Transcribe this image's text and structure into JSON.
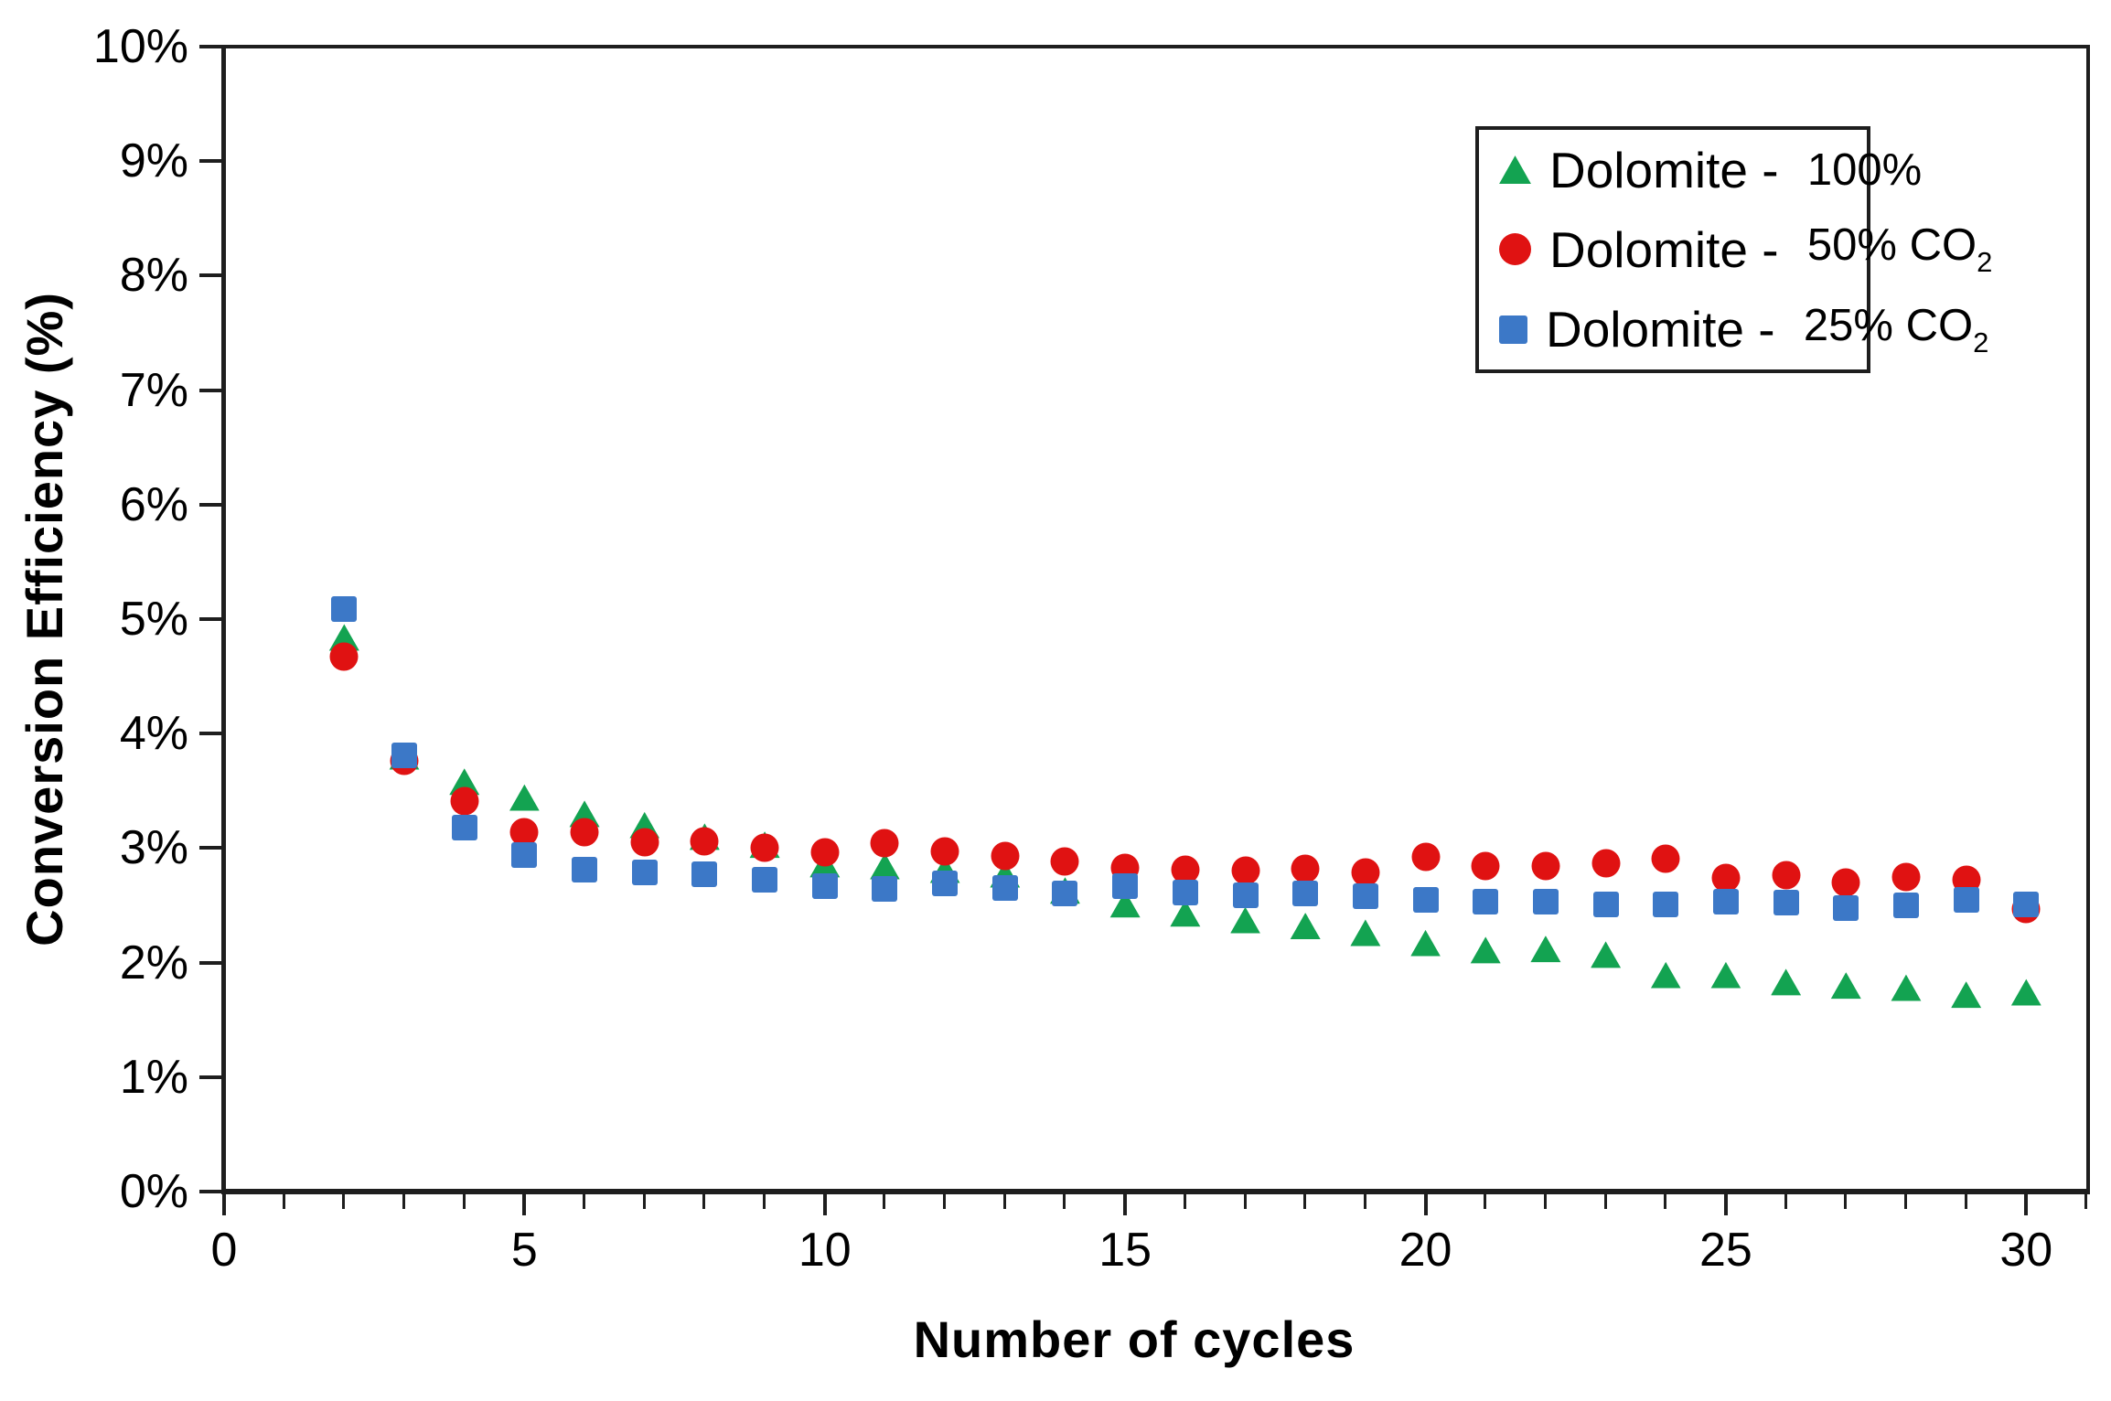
{
  "chart_data": {
    "type": "scatter",
    "title": "",
    "xlabel": "Number of cycles",
    "ylabel": "Conversion Efficiency (%)",
    "xlim": [
      0,
      31
    ],
    "ylim": [
      0,
      10
    ],
    "grid": false,
    "legend_position": "top-right-inside",
    "x_ticks": [
      0,
      5,
      10,
      15,
      20,
      25,
      30
    ],
    "x_tick_labels": [
      "0",
      "5",
      "10",
      "15",
      "20",
      "25",
      "30"
    ],
    "x_minor_ticks_every": 1,
    "y_ticks": [
      0,
      1,
      2,
      3,
      4,
      5,
      6,
      7,
      8,
      9,
      10
    ],
    "y_tick_labels": [
      "0%",
      "1%",
      "2%",
      "3%",
      "4%",
      "5%",
      "6%",
      "7%",
      "8%",
      "9%",
      "10%"
    ],
    "x": [
      2,
      3,
      4,
      5,
      6,
      7,
      8,
      9,
      10,
      11,
      12,
      13,
      14,
      15,
      16,
      17,
      18,
      19,
      20,
      21,
      22,
      23,
      24,
      25,
      26,
      27,
      28,
      29,
      30
    ],
    "series": [
      {
        "name": "Dolomite - 100%",
        "marker": "triangle",
        "color": "#13a351",
        "values": [
          4.84,
          3.8,
          3.58,
          3.44,
          3.3,
          3.2,
          3.1,
          3.03,
          2.86,
          2.84,
          2.81,
          2.77,
          2.63,
          2.51,
          2.43,
          2.37,
          2.32,
          2.26,
          2.17,
          2.11,
          2.12,
          2.07,
          1.89,
          1.89,
          1.83,
          1.8,
          1.78,
          1.72,
          1.74
        ]
      },
      {
        "name": "Dolomite - 50% CO2",
        "marker": "circle",
        "color": "#e01212",
        "values": [
          4.67,
          3.76,
          3.41,
          3.14,
          3.14,
          3.05,
          3.06,
          3.0,
          2.96,
          3.04,
          2.97,
          2.93,
          2.88,
          2.83,
          2.81,
          2.8,
          2.82,
          2.79,
          2.92,
          2.84,
          2.84,
          2.87,
          2.91,
          2.74,
          2.76,
          2.7,
          2.75,
          2.72,
          2.47
        ]
      },
      {
        "name": "Dolomite - 25% CO2",
        "marker": "square",
        "color": "#3c78c7",
        "values": [
          5.09,
          3.81,
          3.18,
          2.94,
          2.81,
          2.79,
          2.77,
          2.72,
          2.67,
          2.64,
          2.69,
          2.65,
          2.6,
          2.67,
          2.61,
          2.59,
          2.6,
          2.58,
          2.55,
          2.53,
          2.53,
          2.51,
          2.51,
          2.53,
          2.52,
          2.48,
          2.5,
          2.55,
          2.51
        ]
      }
    ],
    "legend": [
      {
        "prefix": "Dolomite - ",
        "value": "100%",
        "sub": ""
      },
      {
        "prefix": "Dolomite - ",
        "value": "50% CO",
        "sub": "2"
      },
      {
        "prefix": "Dolomite - ",
        "value": "25% CO",
        "sub": "2"
      }
    ]
  }
}
